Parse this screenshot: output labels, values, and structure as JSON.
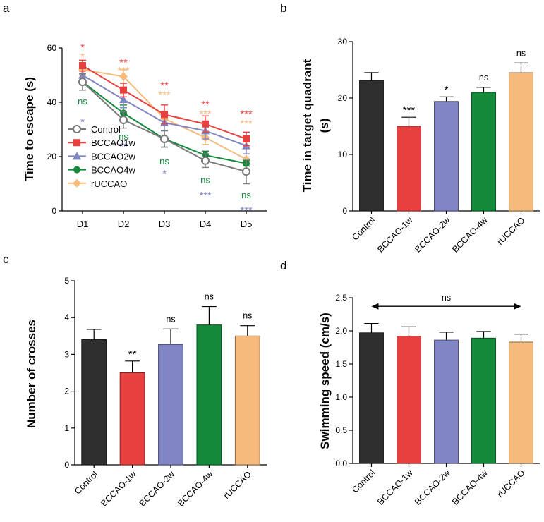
{
  "colors": {
    "axis": "#000000",
    "Control": "#2f2f2f",
    "BCCAO-1w": "#e8403f",
    "BCCAO-2w": "#8085c4",
    "BCCAO-4w": "#138a3a",
    "rUCCAO": "#f6bb7c",
    "control_line": "#7a7a7a"
  },
  "chart_data": [
    {
      "id": "a",
      "panel_label": "a",
      "type": "line",
      "title": "",
      "xlabel": "",
      "ylabel": "Time to escape (s)",
      "ylim": [
        0,
        60
      ],
      "yticks": [
        "0",
        "20",
        "40",
        "60"
      ],
      "categories": [
        "D1",
        "D2",
        "D3",
        "D4",
        "D5"
      ],
      "legend_position": "bottom-left",
      "series": [
        {
          "name": "Control",
          "marker": "open-circle",
          "colorKey": "control_line",
          "values": [
            47.5,
            33.5,
            26.5,
            18.5,
            14.5
          ],
          "errors": [
            3,
            3,
            3,
            2.5,
            4.5
          ]
        },
        {
          "name": "BCCAO1w",
          "marker": "square",
          "colorKey": "BCCAO-1w",
          "values": [
            53.5,
            44.5,
            35.5,
            32,
            26.5
          ],
          "errors": [
            2,
            2.5,
            3.5,
            3,
            2.5
          ]
        },
        {
          "name": "BCCAO2w",
          "marker": "triangle",
          "colorKey": "BCCAO-2w",
          "values": [
            50,
            41,
            32.5,
            29.5,
            24
          ],
          "errors": [
            2.5,
            3,
            3,
            3,
            3
          ]
        },
        {
          "name": "BCCAO4w",
          "marker": "filled-circle",
          "colorKey": "BCCAO-4w",
          "values": [
            47.5,
            36,
            26.5,
            20.5,
            17.5
          ],
          "errors": [
            3,
            3,
            3,
            1.5,
            1
          ]
        },
        {
          "name": "rUCCAO",
          "marker": "diamond",
          "colorKey": "rUCCAO",
          "values": [
            52,
            49.5,
            34,
            27,
            19
          ],
          "errors": [
            2,
            2.5,
            2.5,
            2.5,
            2
          ]
        }
      ],
      "annotations": [
        {
          "text": "*",
          "category": "D1",
          "y": 61,
          "colorKey": "BCCAO-1w"
        },
        {
          "text": "*",
          "category": "D1",
          "y": 57.5,
          "colorKey": "rUCCAO"
        },
        {
          "text": "ns",
          "category": "D1",
          "y": 40.5,
          "colorKey": "BCCAO-4w"
        },
        {
          "text": "*",
          "category": "D1",
          "y": 33.5,
          "colorKey": "BCCAO-2w"
        },
        {
          "text": "**",
          "category": "D2",
          "y": 55.5,
          "colorKey": "BCCAO-1w"
        },
        {
          "text": "***",
          "category": "D2",
          "y": 52.5,
          "colorKey": "rUCCAO"
        },
        {
          "text": "ns",
          "category": "D2",
          "y": 27.5,
          "colorKey": "BCCAO-4w"
        },
        {
          "text": "**",
          "category": "D2",
          "y": 24.5,
          "colorKey": "BCCAO-2w"
        },
        {
          "text": "**",
          "category": "D3",
          "y": 47,
          "colorKey": "BCCAO-1w"
        },
        {
          "text": "***",
          "category": "D3",
          "y": 43.5,
          "colorKey": "rUCCAO"
        },
        {
          "text": "ns",
          "category": "D3",
          "y": 18.5,
          "colorKey": "BCCAO-4w"
        },
        {
          "text": "*",
          "category": "D3",
          "y": 14.5,
          "colorKey": "BCCAO-2w"
        },
        {
          "text": "**",
          "category": "D4",
          "y": 40,
          "colorKey": "BCCAO-1w"
        },
        {
          "text": "***",
          "category": "D4",
          "y": 36.5,
          "colorKey": "rUCCAO"
        },
        {
          "text": "ns",
          "category": "D4",
          "y": 11.5,
          "colorKey": "BCCAO-4w"
        },
        {
          "text": "***",
          "category": "D4",
          "y": 6.5,
          "colorKey": "BCCAO-2w"
        },
        {
          "text": "***",
          "category": "D5",
          "y": 36.5,
          "colorKey": "BCCAO-1w"
        },
        {
          "text": "***",
          "category": "D5",
          "y": 33,
          "colorKey": "rUCCAO"
        },
        {
          "text": "ns",
          "category": "D5",
          "y": 6,
          "colorKey": "BCCAO-4w"
        },
        {
          "text": "***",
          "category": "D5",
          "y": 1,
          "colorKey": "BCCAO-2w"
        }
      ]
    },
    {
      "id": "b",
      "panel_label": "b",
      "type": "bar",
      "title": "",
      "xlabel": "",
      "ylabel": "Time in target quadrant (s)",
      "ylabel_lines": [
        "Time in target quadrant",
        "(s)"
      ],
      "ylim": [
        0,
        30
      ],
      "yticks": [
        "0",
        "10",
        "20",
        "30"
      ],
      "categories": [
        "Control",
        "BCCAO-1w",
        "BCCAO-2w",
        "BCCAO-4w",
        "rUCCAO"
      ],
      "values": [
        23.1,
        15,
        19.4,
        21,
        24.5
      ],
      "errors": [
        1.4,
        1.6,
        0.8,
        0.9,
        1.7
      ],
      "significance": [
        "",
        "***",
        "*",
        "ns",
        "ns"
      ]
    },
    {
      "id": "c",
      "panel_label": "c",
      "type": "bar",
      "title": "",
      "xlabel": "",
      "ylabel": "Number of  crosses",
      "ylim": [
        0,
        5
      ],
      "yticks": [
        "0",
        "1",
        "2",
        "3",
        "4",
        "5"
      ],
      "categories": [
        "Control",
        "BCCAO-1w",
        "BCCAO-2w",
        "BCCAO-4w",
        "rUCCAO"
      ],
      "values": [
        3.4,
        2.5,
        3.27,
        3.8,
        3.5
      ],
      "errors": [
        0.28,
        0.32,
        0.42,
        0.5,
        0.28
      ],
      "significance": [
        "",
        "**",
        "ns",
        "ns",
        "ns"
      ]
    },
    {
      "id": "d",
      "panel_label": "d",
      "type": "bar",
      "title": "",
      "xlabel": "",
      "ylabel": "Swimming speed (cm/s)",
      "ylim": [
        0,
        2.5
      ],
      "yticks": [
        "0.0",
        "0.5",
        "1.0",
        "1.5",
        "2.0",
        "2.5"
      ],
      "categories": [
        "Control",
        "BCCAO-1w",
        "BCCAO-2w",
        "BCCAO-4w",
        "rUCCAO"
      ],
      "values": [
        1.97,
        1.92,
        1.86,
        1.89,
        1.83
      ],
      "errors": [
        0.14,
        0.14,
        0.12,
        0.1,
        0.12
      ],
      "significance": [
        "",
        "",
        "",
        "",
        ""
      ],
      "range_annotation": {
        "text": "ns",
        "from": "Control",
        "to": "rUCCAO",
        "y": 2.37
      }
    }
  ]
}
